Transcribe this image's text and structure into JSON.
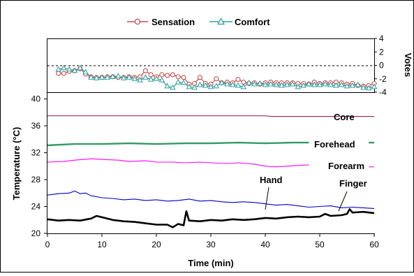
{
  "chart_data": [
    {
      "type": "line",
      "panel": "votes",
      "ylabel": "Votes",
      "ylim": [
        -4,
        4
      ],
      "yticks": [
        "4",
        "2",
        "0",
        "-2",
        "-4"
      ],
      "ytick_values": [
        4,
        2,
        0,
        -2,
        -4
      ],
      "reference_line_y": 0,
      "legend": "top-center",
      "series": [
        {
          "name": "Sensation",
          "color": "#c0504d",
          "marker": "circle",
          "x": [
            2,
            3,
            4,
            5,
            6,
            7,
            8,
            9,
            10,
            11,
            12,
            13,
            14,
            15,
            16,
            17,
            18,
            19,
            20,
            21,
            22,
            23,
            24,
            25,
            26,
            27,
            28,
            29,
            30,
            31,
            32,
            33,
            34,
            35,
            36,
            37,
            38,
            39,
            40,
            41,
            42,
            43,
            44,
            45,
            46,
            47,
            48,
            49,
            50,
            51,
            52,
            53,
            54,
            55,
            56,
            57,
            58,
            59,
            60
          ],
          "y": [
            -1.2,
            -1.2,
            -0.9,
            -0.8,
            -0.5,
            -1.3,
            -1.7,
            -1.8,
            -1.8,
            -1.7,
            -1.7,
            -1.8,
            -1.8,
            -1.7,
            -1.8,
            -1.7,
            -0.8,
            -1.4,
            -1.7,
            -1.4,
            -1.5,
            -1.4,
            -1.7,
            -1.8,
            -2.8,
            -2.7,
            -1.8,
            -2.7,
            -2.8,
            -2.0,
            -2.6,
            -2.5,
            -2.6,
            -2.1,
            -2.5,
            -2.7,
            -2.6,
            -2.8,
            -2.6,
            -2.5,
            -2.6,
            -2.6,
            -2.6,
            -2.6,
            -2.7,
            -2.7,
            -2.8,
            -2.5,
            -2.7,
            -2.6,
            -2.6,
            -2.5,
            -2.6,
            -2.8,
            -2.7,
            -3.0,
            -3.1,
            -3.0,
            -2.7
          ]
        },
        {
          "name": "Comfort",
          "color": "#2e9e9e",
          "marker": "triangle",
          "x": [
            2,
            3,
            4,
            5,
            6,
            7,
            8,
            9,
            10,
            11,
            12,
            13,
            14,
            15,
            16,
            17,
            18,
            19,
            20,
            21,
            22,
            23,
            24,
            25,
            26,
            27,
            28,
            29,
            30,
            31,
            32,
            33,
            34,
            35,
            36,
            37,
            38,
            39,
            40,
            41,
            42,
            43,
            44,
            45,
            46,
            47,
            48,
            49,
            50,
            51,
            52,
            53,
            54,
            55,
            56,
            57,
            58,
            59,
            60
          ],
          "y": [
            -0.6,
            -0.4,
            -0.6,
            -0.8,
            -0.4,
            -1.0,
            -1.8,
            -1.9,
            -1.8,
            -1.8,
            -1.7,
            -1.6,
            -1.9,
            -1.8,
            -2.0,
            -2.2,
            -1.8,
            -2.1,
            -2.0,
            -2.2,
            -3.1,
            -3.3,
            -2.5,
            -2.6,
            -3.2,
            -3.3,
            -2.9,
            -3.0,
            -3.2,
            -3.1,
            -2.6,
            -2.8,
            -2.9,
            -3.0,
            -3.2,
            -2.6,
            -2.8,
            -2.7,
            -2.9,
            -2.8,
            -2.9,
            -3.0,
            -2.9,
            -2.8,
            -3.2,
            -3.0,
            -2.8,
            -2.9,
            -2.9,
            -2.8,
            -2.9,
            -3.0,
            -2.9,
            -3.1,
            -3.0,
            -2.9,
            -3.3,
            -3.4,
            -3.2
          ]
        }
      ]
    },
    {
      "type": "line",
      "panel": "temperature",
      "xlabel": "Time (min)",
      "ylabel": "Temperature (°C)",
      "xlim": [
        0,
        60
      ],
      "ylim": [
        20,
        41
      ],
      "xticks": [
        "0",
        "10",
        "20",
        "30",
        "40",
        "50",
        "60"
      ],
      "xtick_values": [
        0,
        10,
        20,
        30,
        40,
        50,
        60
      ],
      "yticks": [
        "40",
        "36",
        "32",
        "28",
        "24",
        "20"
      ],
      "ytick_values": [
        40,
        36,
        32,
        28,
        24,
        20
      ],
      "series": [
        {
          "name": "Core",
          "color": "#993366",
          "width": 1.2,
          "x": [
            0,
            10,
            20,
            30,
            40,
            41,
            50,
            60
          ],
          "y": [
            37.5,
            37.5,
            37.5,
            37.5,
            37.5,
            37.4,
            37.4,
            37.4
          ]
        },
        {
          "name": "Forehead",
          "color": "#339966",
          "width": 2.4,
          "x": [
            0,
            5,
            10,
            15,
            20,
            25,
            30,
            35,
            40,
            45,
            48,
            49,
            59,
            60
          ],
          "y": [
            33.1,
            33.3,
            33.3,
            33.4,
            33.3,
            33.4,
            33.4,
            33.5,
            33.4,
            33.5,
            33.5,
            null,
            33.5,
            33.5
          ]
        },
        {
          "name": "Forearm",
          "color": "#ff00ff",
          "width": 1.1,
          "x": [
            0,
            3,
            5,
            8,
            10,
            13,
            15,
            18,
            20,
            23,
            25,
            28,
            30,
            33,
            35,
            38,
            40,
            42,
            44,
            46,
            48,
            49,
            59,
            60
          ],
          "y": [
            30.6,
            30.7,
            30.9,
            31.1,
            31.0,
            30.9,
            30.7,
            30.8,
            30.6,
            30.6,
            30.5,
            30.6,
            30.5,
            30.4,
            30.5,
            30.3,
            30.0,
            29.9,
            30.0,
            30.1,
            30.2,
            null,
            29.9,
            29.9
          ]
        },
        {
          "name": "Hand",
          "color": "#0000cc",
          "width": 1.1,
          "x": [
            0,
            2,
            4,
            5,
            6,
            7,
            8,
            10,
            12,
            14,
            16,
            18,
            20,
            22,
            24,
            26,
            28,
            30,
            32,
            34,
            36,
            38,
            40,
            42,
            44,
            46,
            48,
            50,
            52,
            54,
            56,
            58,
            60
          ],
          "y": [
            25.7,
            25.9,
            26.0,
            26.3,
            25.9,
            26.0,
            25.6,
            25.3,
            25.2,
            25.0,
            25.1,
            24.9,
            25.0,
            24.8,
            24.9,
            25.1,
            24.8,
            24.9,
            24.7,
            24.6,
            24.7,
            24.6,
            24.4,
            24.2,
            24.3,
            24.1,
            23.9,
            24.0,
            24.1,
            23.8,
            23.9,
            23.8,
            23.7
          ]
        },
        {
          "name": "Finger",
          "color": "#000000",
          "width": 2.6,
          "x": [
            0,
            2,
            4,
            6,
            8,
            9,
            10,
            12,
            14,
            16,
            18,
            20,
            22,
            23,
            24,
            25,
            25.5,
            26,
            28,
            30,
            32,
            34,
            36,
            38,
            40,
            42,
            44,
            46,
            48,
            50,
            51,
            52,
            54,
            55,
            55.5,
            56,
            58,
            60
          ],
          "y": [
            22.1,
            21.9,
            22.0,
            21.9,
            22.2,
            22.6,
            22.4,
            22.0,
            21.8,
            21.7,
            21.5,
            21.3,
            21.3,
            20.9,
            21.4,
            21.2,
            23.3,
            21.9,
            21.8,
            22.0,
            21.9,
            22.1,
            22.0,
            22.1,
            22.3,
            22.2,
            22.4,
            22.5,
            22.4,
            22.5,
            22.9,
            22.6,
            22.7,
            22.9,
            23.6,
            23.1,
            23.2,
            23.0
          ]
        }
      ]
    }
  ]
}
